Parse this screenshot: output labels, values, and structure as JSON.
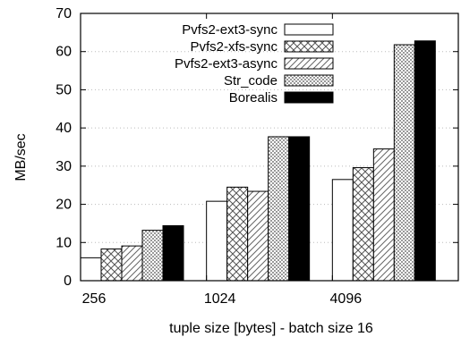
{
  "chart_data": {
    "type": "bar",
    "title": "",
    "xlabel": "tuple size [bytes] - batch size 16",
    "ylabel": "MB/sec",
    "ylim": [
      0,
      70
    ],
    "yticks": [
      0,
      10,
      20,
      30,
      40,
      50,
      60,
      70
    ],
    "categories": [
      "256",
      "1024",
      "4096"
    ],
    "grid": true,
    "legend_position": "top-left",
    "series": [
      {
        "name": "Pvfs2-ext3-sync",
        "pattern": "empty",
        "values": [
          6,
          20.8,
          26.5
        ]
      },
      {
        "name": "Pvfs2-xfs-sync",
        "pattern": "crosshatch",
        "values": [
          8.3,
          24.5,
          29.6
        ]
      },
      {
        "name": "Pvfs2-ext3-async",
        "pattern": "diagonal",
        "values": [
          9.1,
          23.4,
          34.5
        ]
      },
      {
        "name": "Str_code",
        "pattern": "fine-check",
        "values": [
          13.2,
          37.7,
          61.8
        ]
      },
      {
        "name": "Borealis",
        "pattern": "solid-black",
        "values": [
          14.4,
          37.7,
          62.8
        ]
      }
    ]
  }
}
